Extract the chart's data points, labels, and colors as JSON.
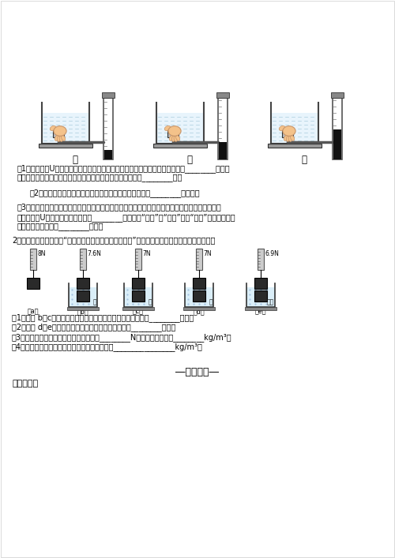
{
  "title": "",
  "background_color": "#ffffff",
  "labels_row1": [
    "甲",
    "乙",
    "丙"
  ],
  "section1_q1": "（1）要观察到U形管两侧液面的高度差相等，必须控制金属盒面的中心在水中的________相等，",
  "section1_q1b": "由上述实验可得：液体内部同一深度向各个方向的压强大小是________的。",
  "section1_q2": "（2）不增加器材，用这套装置还可以探究液体内部压强与________的关系。",
  "section1_q3a": "（3）若将丙图中的水换为浓盐水（浓盐水的密度大于水的密度），并使金属盒处于两种液体中的相",
  "section1_q3b": "同深度，则U形管两侧液面的高度差________（选填：“变大”、“变小”、或“不变”）；说明液体",
  "section1_q3c": "内部的压强与液体的________有关。",
  "section2_intro": "2、如图所示，是某同学“探究浮力的大小与哪些因素有关”的实验，根据实验过程回答下列问题。",
  "section2_forces": [
    "8N",
    "7.6N",
    "7N",
    "7N",
    "6.9N"
  ],
  "section2_labels": [
    "（a）",
    "（b）",
    "（c）",
    "（d）",
    "（e）"
  ],
  "section2_water_labels": [
    "",
    "水",
    "水",
    "水",
    "盐水"
  ],
  "section2_in_water": [
    false,
    true,
    true,
    true,
    true
  ],
  "section2_q1": "（1）观察 b、c两图可得物体所受浮力的大小与物体排开液体的________有关；",
  "section2_q2": "（2）观察 d、e两图可得物体所受浮力的大小与液体的________有关；",
  "section2_q3": "（3）该物体浸没在水中所受浮力的大小为________N，该物体的密度是________kg/m³；",
  "section2_q4": "（4）观察以上实验，分析数据可知盐水的密度是________________kg/m³。",
  "answer_header": "―参考答案―",
  "answer_section": "一、单选题"
}
